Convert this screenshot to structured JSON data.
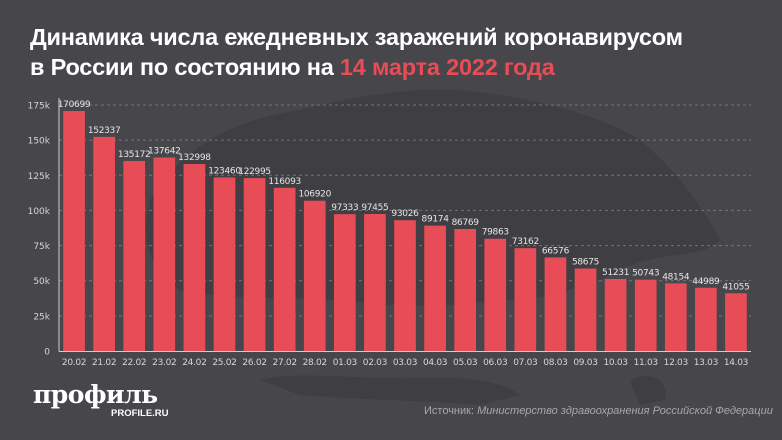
{
  "title": {
    "line1": "Динамика числа ежедневных заражений коронавирусом",
    "line2_prefix": "в России по состоянию на ",
    "line2_accent": "14 марта 2022 года"
  },
  "colors": {
    "background": "#47464b",
    "bar": "#e84d57",
    "accent": "#e84d57",
    "text": "#ffffff",
    "axis_text": "#d6d6d8"
  },
  "chart_data": {
    "type": "bar",
    "title": "Динамика числа ежедневных заражений коронавирусом в России по состоянию на 14 марта 2022 года",
    "xlabel": "",
    "ylabel": "",
    "ylim": [
      0,
      175000
    ],
    "grid": true,
    "yticks": [
      0,
      25000,
      50000,
      75000,
      100000,
      125000,
      150000,
      175000
    ],
    "ytick_labels": [
      "0",
      "25k",
      "50k",
      "75k",
      "100k",
      "125k",
      "150k",
      "175k"
    ],
    "categories": [
      "20.02",
      "21.02",
      "22.02",
      "23.02",
      "24.02",
      "25.02",
      "26.02",
      "27.02",
      "28.02",
      "01.03",
      "02.03",
      "03.03",
      "04.03",
      "05.03",
      "06.03",
      "07.03",
      "08.03",
      "09.03",
      "10.03",
      "11.03",
      "12.03",
      "13.03",
      "14.03"
    ],
    "values": [
      170699,
      152337,
      135172,
      137642,
      132998,
      123460,
      122995,
      116093,
      106920,
      97333,
      97455,
      93026,
      89174,
      86769,
      79863,
      73162,
      66576,
      58675,
      51231,
      50743,
      48154,
      44989,
      41055
    ]
  },
  "footer": {
    "logo": "профиль",
    "logo_sub": "PROFILE.RU",
    "source_label": "Источник: ",
    "source_name": "Министерство здравоохранения Российской Федерации"
  }
}
